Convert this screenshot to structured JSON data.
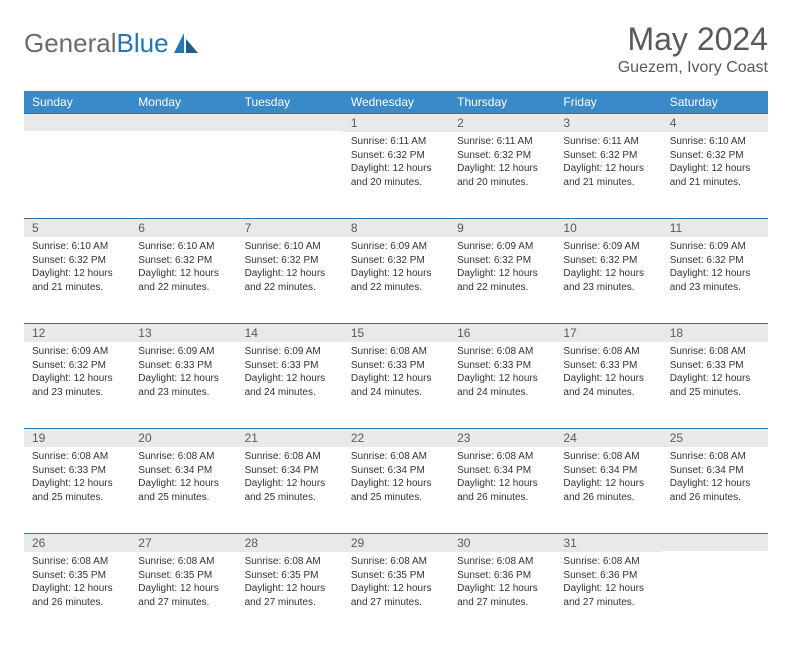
{
  "brand": {
    "wordA": "General",
    "wordB": "Blue"
  },
  "title": "May 2024",
  "location": "Guezem, Ivory Coast",
  "colors": {
    "header_bg": "#3a89c9",
    "header_text": "#ffffff",
    "daynum_bg": "#e9e9e9",
    "daynum_text": "#5a5a5a",
    "rule": "#2675b5",
    "body_text": "#333333",
    "title_text": "#595959",
    "logo_gray": "#6b6b6b",
    "logo_blue": "#2675b5",
    "page_bg": "#ffffff"
  },
  "typography": {
    "title_fontsize": 32,
    "location_fontsize": 16,
    "header_fontsize": 12,
    "daynum_fontsize": 12,
    "body_fontsize": 10,
    "logo_fontsize": 26
  },
  "day_headers": [
    "Sunday",
    "Monday",
    "Tuesday",
    "Wednesday",
    "Thursday",
    "Friday",
    "Saturday"
  ],
  "weeks": [
    [
      {
        "n": "",
        "lines": []
      },
      {
        "n": "",
        "lines": []
      },
      {
        "n": "",
        "lines": []
      },
      {
        "n": "1",
        "lines": [
          "Sunrise: 6:11 AM",
          "Sunset: 6:32 PM",
          "Daylight: 12 hours and 20 minutes."
        ]
      },
      {
        "n": "2",
        "lines": [
          "Sunrise: 6:11 AM",
          "Sunset: 6:32 PM",
          "Daylight: 12 hours and 20 minutes."
        ]
      },
      {
        "n": "3",
        "lines": [
          "Sunrise: 6:11 AM",
          "Sunset: 6:32 PM",
          "Daylight: 12 hours and 21 minutes."
        ]
      },
      {
        "n": "4",
        "lines": [
          "Sunrise: 6:10 AM",
          "Sunset: 6:32 PM",
          "Daylight: 12 hours and 21 minutes."
        ]
      }
    ],
    [
      {
        "n": "5",
        "lines": [
          "Sunrise: 6:10 AM",
          "Sunset: 6:32 PM",
          "Daylight: 12 hours and 21 minutes."
        ]
      },
      {
        "n": "6",
        "lines": [
          "Sunrise: 6:10 AM",
          "Sunset: 6:32 PM",
          "Daylight: 12 hours and 22 minutes."
        ]
      },
      {
        "n": "7",
        "lines": [
          "Sunrise: 6:10 AM",
          "Sunset: 6:32 PM",
          "Daylight: 12 hours and 22 minutes."
        ]
      },
      {
        "n": "8",
        "lines": [
          "Sunrise: 6:09 AM",
          "Sunset: 6:32 PM",
          "Daylight: 12 hours and 22 minutes."
        ]
      },
      {
        "n": "9",
        "lines": [
          "Sunrise: 6:09 AM",
          "Sunset: 6:32 PM",
          "Daylight: 12 hours and 22 minutes."
        ]
      },
      {
        "n": "10",
        "lines": [
          "Sunrise: 6:09 AM",
          "Sunset: 6:32 PM",
          "Daylight: 12 hours and 23 minutes."
        ]
      },
      {
        "n": "11",
        "lines": [
          "Sunrise: 6:09 AM",
          "Sunset: 6:32 PM",
          "Daylight: 12 hours and 23 minutes."
        ]
      }
    ],
    [
      {
        "n": "12",
        "lines": [
          "Sunrise: 6:09 AM",
          "Sunset: 6:32 PM",
          "Daylight: 12 hours and 23 minutes."
        ]
      },
      {
        "n": "13",
        "lines": [
          "Sunrise: 6:09 AM",
          "Sunset: 6:33 PM",
          "Daylight: 12 hours and 23 minutes."
        ]
      },
      {
        "n": "14",
        "lines": [
          "Sunrise: 6:09 AM",
          "Sunset: 6:33 PM",
          "Daylight: 12 hours and 24 minutes."
        ]
      },
      {
        "n": "15",
        "lines": [
          "Sunrise: 6:08 AM",
          "Sunset: 6:33 PM",
          "Daylight: 12 hours and 24 minutes."
        ]
      },
      {
        "n": "16",
        "lines": [
          "Sunrise: 6:08 AM",
          "Sunset: 6:33 PM",
          "Daylight: 12 hours and 24 minutes."
        ]
      },
      {
        "n": "17",
        "lines": [
          "Sunrise: 6:08 AM",
          "Sunset: 6:33 PM",
          "Daylight: 12 hours and 24 minutes."
        ]
      },
      {
        "n": "18",
        "lines": [
          "Sunrise: 6:08 AM",
          "Sunset: 6:33 PM",
          "Daylight: 12 hours and 25 minutes."
        ]
      }
    ],
    [
      {
        "n": "19",
        "lines": [
          "Sunrise: 6:08 AM",
          "Sunset: 6:33 PM",
          "Daylight: 12 hours and 25 minutes."
        ]
      },
      {
        "n": "20",
        "lines": [
          "Sunrise: 6:08 AM",
          "Sunset: 6:34 PM",
          "Daylight: 12 hours and 25 minutes."
        ]
      },
      {
        "n": "21",
        "lines": [
          "Sunrise: 6:08 AM",
          "Sunset: 6:34 PM",
          "Daylight: 12 hours and 25 minutes."
        ]
      },
      {
        "n": "22",
        "lines": [
          "Sunrise: 6:08 AM",
          "Sunset: 6:34 PM",
          "Daylight: 12 hours and 25 minutes."
        ]
      },
      {
        "n": "23",
        "lines": [
          "Sunrise: 6:08 AM",
          "Sunset: 6:34 PM",
          "Daylight: 12 hours and 26 minutes."
        ]
      },
      {
        "n": "24",
        "lines": [
          "Sunrise: 6:08 AM",
          "Sunset: 6:34 PM",
          "Daylight: 12 hours and 26 minutes."
        ]
      },
      {
        "n": "25",
        "lines": [
          "Sunrise: 6:08 AM",
          "Sunset: 6:34 PM",
          "Daylight: 12 hours and 26 minutes."
        ]
      }
    ],
    [
      {
        "n": "26",
        "lines": [
          "Sunrise: 6:08 AM",
          "Sunset: 6:35 PM",
          "Daylight: 12 hours and 26 minutes."
        ]
      },
      {
        "n": "27",
        "lines": [
          "Sunrise: 6:08 AM",
          "Sunset: 6:35 PM",
          "Daylight: 12 hours and 27 minutes."
        ]
      },
      {
        "n": "28",
        "lines": [
          "Sunrise: 6:08 AM",
          "Sunset: 6:35 PM",
          "Daylight: 12 hours and 27 minutes."
        ]
      },
      {
        "n": "29",
        "lines": [
          "Sunrise: 6:08 AM",
          "Sunset: 6:35 PM",
          "Daylight: 12 hours and 27 minutes."
        ]
      },
      {
        "n": "30",
        "lines": [
          "Sunrise: 6:08 AM",
          "Sunset: 6:36 PM",
          "Daylight: 12 hours and 27 minutes."
        ]
      },
      {
        "n": "31",
        "lines": [
          "Sunrise: 6:08 AM",
          "Sunset: 6:36 PM",
          "Daylight: 12 hours and 27 minutes."
        ]
      },
      {
        "n": "",
        "lines": []
      }
    ]
  ]
}
